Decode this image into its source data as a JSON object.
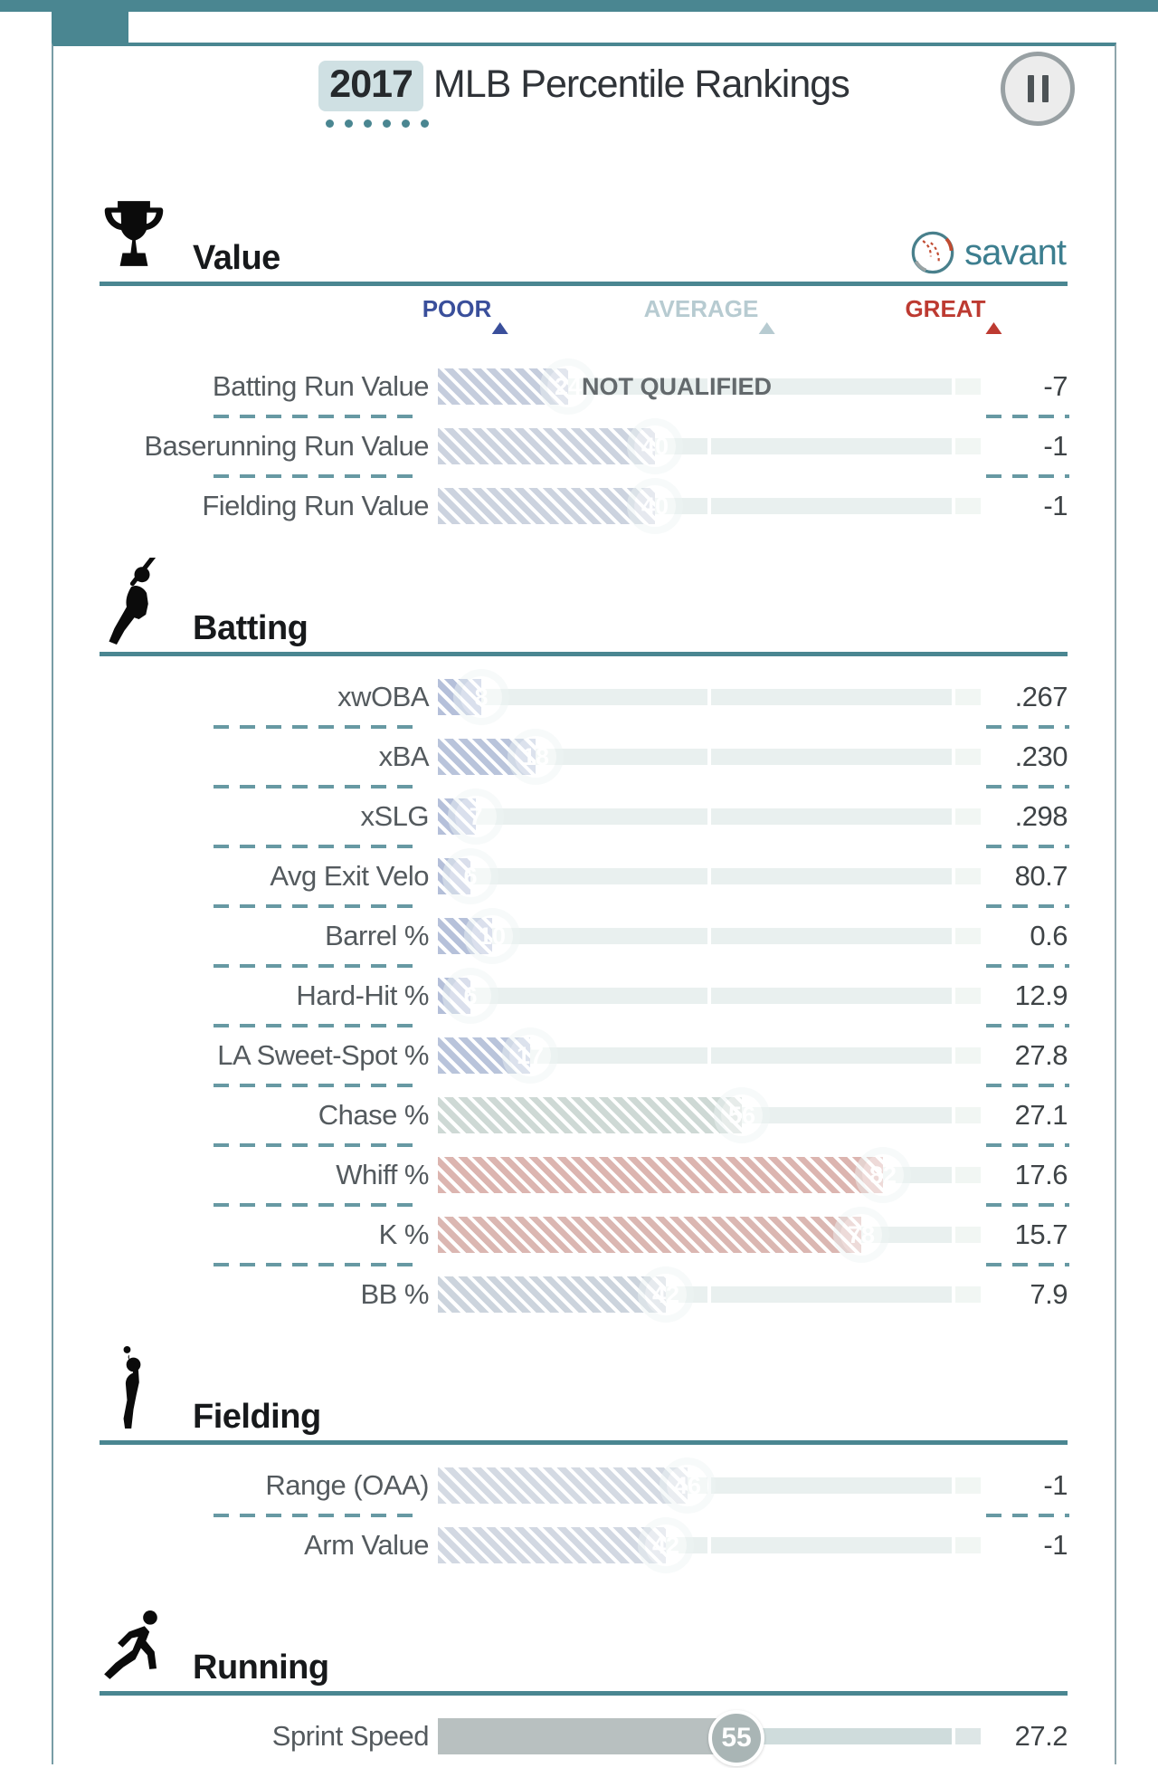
{
  "header": {
    "year": "2017",
    "title_rest": "MLB Percentile Rankings",
    "pause_icon": "pause-icon"
  },
  "brand": {
    "name": "savant",
    "icon": "baseball-icon"
  },
  "scale_labels": {
    "poor": "POOR",
    "average": "AVERAGE",
    "great": "GREAT",
    "poor_color": "#3a4f9b",
    "average_color": "#b7cbd1",
    "great_color": "#bd3a31"
  },
  "not_qualified_label": "NOT QUALIFIED",
  "accent_color": "#4a8691",
  "chart_data": {
    "type": "bar",
    "orientation": "horizontal",
    "title": "2017 MLB Percentile Rankings",
    "scale": {
      "min": 0,
      "max": 100,
      "markers": [
        5,
        50,
        95
      ],
      "marker_labels": [
        "POOR",
        "AVERAGE",
        "GREAT"
      ]
    },
    "sections": [
      {
        "title": "Value",
        "icon": "trophy-icon",
        "rows": [
          {
            "label": "Batting Run Value",
            "value": "-7",
            "percentile": 24,
            "style": "hatched",
            "hatch": "#c5cddd",
            "note": "NOT QUALIFIED"
          },
          {
            "label": "Baserunning Run Value",
            "value": "-1",
            "percentile": 40,
            "style": "hatched",
            "hatch": "#ccd3df"
          },
          {
            "label": "Fielding Run Value",
            "value": "-1",
            "percentile": 40,
            "style": "hatched",
            "hatch": "#ccd3df"
          }
        ]
      },
      {
        "title": "Batting",
        "icon": "batter-icon",
        "rows": [
          {
            "label": "xwOBA",
            "value": ".267",
            "percentile": 8,
            "style": "hatched",
            "hatch": "#b5c0da"
          },
          {
            "label": "xBA",
            "value": ".230",
            "percentile": 18,
            "style": "hatched",
            "hatch": "#b9c4db"
          },
          {
            "label": "xSLG",
            "value": ".298",
            "percentile": 7,
            "style": "hatched",
            "hatch": "#b5c0da"
          },
          {
            "label": "Avg Exit Velo",
            "value": "80.7",
            "percentile": 6,
            "style": "hatched",
            "hatch": "#b4bfd9"
          },
          {
            "label": "Barrel %",
            "value": "0.6",
            "percentile": 10,
            "style": "hatched",
            "hatch": "#b6c1da"
          },
          {
            "label": "Hard-Hit %",
            "value": "12.9",
            "percentile": 6,
            "style": "hatched",
            "hatch": "#b4bfd9"
          },
          {
            "label": "LA Sweet-Spot %",
            "value": "27.8",
            "percentile": 17,
            "style": "hatched",
            "hatch": "#b9c4db"
          },
          {
            "label": "Chase %",
            "value": "27.1",
            "percentile": 56,
            "style": "hatched",
            "hatch": "#ced9d5"
          },
          {
            "label": "Whiff %",
            "value": "17.6",
            "percentile": 82,
            "style": "hatched",
            "hatch": "#dcb5b0"
          },
          {
            "label": "K %",
            "value": "15.7",
            "percentile": 78,
            "style": "hatched",
            "hatch": "#dbb7b2"
          },
          {
            "label": "BB %",
            "value": "7.9",
            "percentile": 42,
            "style": "hatched",
            "hatch": "#ccd4dd"
          }
        ]
      },
      {
        "title": "Fielding",
        "icon": "fielder-icon",
        "rows": [
          {
            "label": "Range (OAA)",
            "value": "-1",
            "percentile": 46,
            "style": "hatched",
            "hatch": "#d4dae3"
          },
          {
            "label": "Arm Value",
            "value": "-1",
            "percentile": 42,
            "style": "hatched",
            "hatch": "#d2d8e2"
          }
        ]
      },
      {
        "title": "Running",
        "icon": "runner-icon",
        "rows": [
          {
            "label": "Sprint Speed",
            "value": "27.2",
            "percentile": 55,
            "style": "solid",
            "bar_color": "#b8c0c0"
          }
        ]
      }
    ]
  }
}
